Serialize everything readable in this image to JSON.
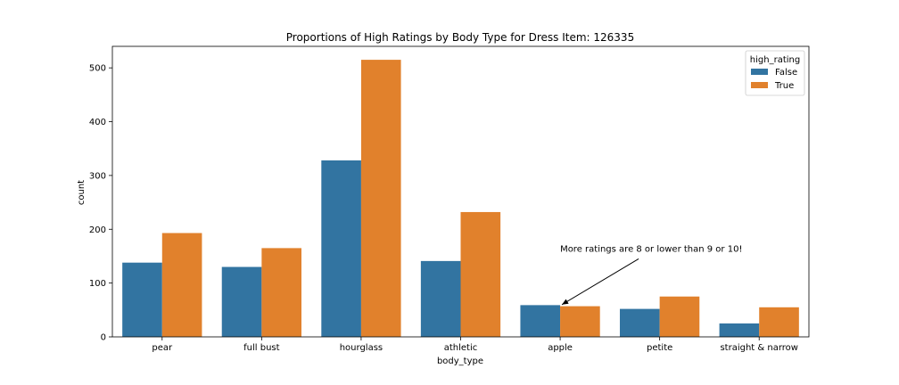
{
  "chart_data": {
    "type": "bar",
    "title": "Proportions of High Ratings by Body Type for Dress Item: 126335",
    "xlabel": "body_type",
    "ylabel": "count",
    "categories": [
      "pear",
      "full bust",
      "hourglass",
      "athletic",
      "apple",
      "petite",
      "straight & narrow"
    ],
    "series": [
      {
        "name": "False",
        "color": "#3274a1",
        "values": [
          138,
          130,
          328,
          141,
          59,
          52,
          25
        ]
      },
      {
        "name": "True",
        "color": "#e1812c",
        "values": [
          193,
          165,
          515,
          232,
          57,
          75,
          55
        ]
      }
    ],
    "ylim": [
      0,
      540
    ],
    "yticks": [
      0,
      100,
      200,
      300,
      400,
      500
    ],
    "grid": false,
    "legend": {
      "title": "high_rating",
      "position": "top-right"
    },
    "annotation": {
      "text": "More ratings are 8 or lower than 9 or 10!",
      "target_category": "apple",
      "target_value": 60,
      "text_value": 165
    }
  }
}
